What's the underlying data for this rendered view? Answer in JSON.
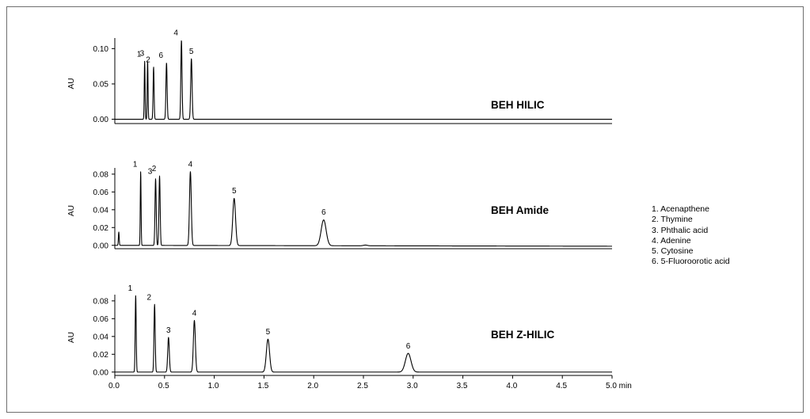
{
  "chart_data": [
    {
      "type": "line",
      "title": "BEH HILIC",
      "ylabel": "AU",
      "ylim": [
        -0.005,
        0.115
      ],
      "yticks": [
        0.0,
        0.05,
        0.1
      ],
      "ytick_labels": [
        "0.00",
        "0.05",
        "0.10"
      ],
      "baseline": 0.0,
      "peaks": [
        {
          "label": "1",
          "x": 0.3,
          "y": 0.082,
          "w": 0.004
        },
        {
          "label": "3",
          "x": 0.33,
          "y": 0.083,
          "w": 0.004
        },
        {
          "label": "2",
          "x": 0.39,
          "y": 0.074,
          "w": 0.005
        },
        {
          "label": "6",
          "x": 0.52,
          "y": 0.08,
          "w": 0.006
        },
        {
          "label": "4",
          "x": 0.67,
          "y": 0.112,
          "w": 0.006
        },
        {
          "label": "5",
          "x": 0.77,
          "y": 0.086,
          "w": 0.007
        }
      ]
    },
    {
      "type": "line",
      "title": "BEH Amide",
      "ylabel": "AU",
      "ylim": [
        -0.002,
        0.087
      ],
      "yticks": [
        0.0,
        0.02,
        0.04,
        0.06,
        0.08
      ],
      "ytick_labels": [
        "0.00",
        "0.02",
        "0.04",
        "0.06",
        "0.08"
      ],
      "baseline": 0.0,
      "baseline_end": -0.001,
      "peaks": [
        {
          "label": "",
          "x": 0.04,
          "y": 0.015,
          "w": 0.004
        },
        {
          "label": "1",
          "x": 0.26,
          "y": 0.083,
          "w": 0.004
        },
        {
          "label": "3",
          "x": 0.41,
          "y": 0.075,
          "w": 0.006
        },
        {
          "label": "2",
          "x": 0.45,
          "y": 0.078,
          "w": 0.006
        },
        {
          "label": "4",
          "x": 0.76,
          "y": 0.083,
          "w": 0.009
        },
        {
          "label": "5",
          "x": 1.2,
          "y": 0.053,
          "w": 0.014
        },
        {
          "label": "6",
          "x": 2.1,
          "y": 0.029,
          "w": 0.025
        },
        {
          "label": "",
          "x": 2.52,
          "y": 0.0008,
          "w": 0.02
        }
      ]
    },
    {
      "type": "line",
      "title": "BEH Z-HILIC",
      "ylabel": "AU",
      "xlabel": "min",
      "ylim": [
        -0.002,
        0.087
      ],
      "yticks": [
        0.0,
        0.02,
        0.04,
        0.06,
        0.08
      ],
      "ytick_labels": [
        "0.00",
        "0.02",
        "0.04",
        "0.06",
        "0.08"
      ],
      "xlim": [
        0.0,
        5.0
      ],
      "xticks": [
        0.0,
        0.5,
        1.0,
        1.5,
        2.0,
        2.5,
        3.0,
        3.5,
        4.0,
        4.5,
        5.0
      ],
      "xtick_labels": [
        "0.0",
        "0.5",
        "1.0",
        "1.5",
        "2.0",
        "2.5",
        "3.0",
        "3.5",
        "4.0",
        "4.5",
        "5.0 min"
      ],
      "baseline": 0.0,
      "peaks": [
        {
          "label": "1",
          "x": 0.21,
          "y": 0.086,
          "w": 0.005
        },
        {
          "label": "2",
          "x": 0.4,
          "y": 0.076,
          "w": 0.006
        },
        {
          "label": "3",
          "x": 0.54,
          "y": 0.039,
          "w": 0.008
        },
        {
          "label": "4",
          "x": 0.8,
          "y": 0.058,
          "w": 0.01
        },
        {
          "label": "5",
          "x": 1.54,
          "y": 0.037,
          "w": 0.016
        },
        {
          "label": "6",
          "x": 2.95,
          "y": 0.021,
          "w": 0.028
        }
      ]
    }
  ],
  "legend": [
    "1. Acenapthene",
    "2. Thymine",
    "3. Phthalic acid",
    "4. Adenine",
    "5. Cytosine",
    "6. 5-Fluoroorotic acid"
  ]
}
